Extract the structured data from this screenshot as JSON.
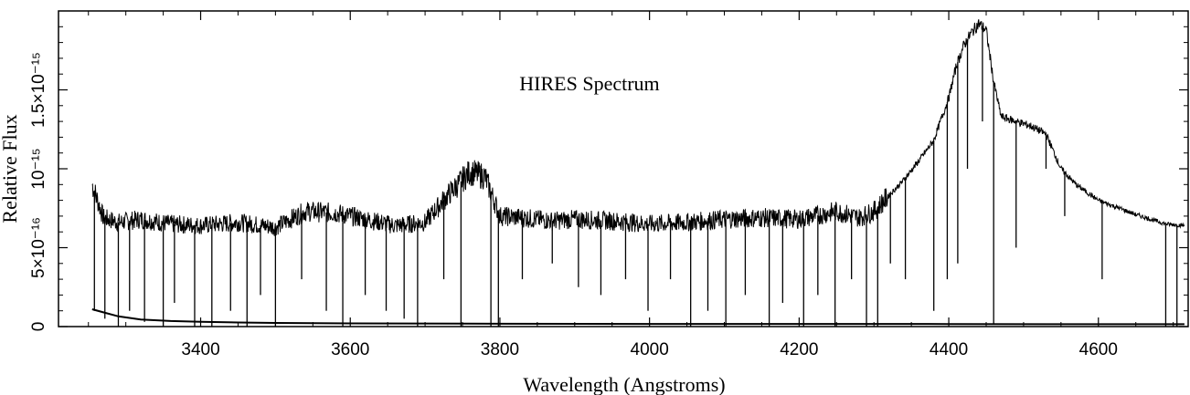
{
  "chart_data": {
    "type": "line",
    "title": "HIRES Spectrum",
    "xlabel": "Wavelength (Angstroms)",
    "ylabel": "Relative Flux",
    "xlim": [
      3210,
      4720
    ],
    "ylim": [
      0,
      2e-15
    ],
    "x_ticks": [
      {
        "value": 3400,
        "label": "3400"
      },
      {
        "value": 3600,
        "label": "3600"
      },
      {
        "value": 3800,
        "label": "3800"
      },
      {
        "value": 4000,
        "label": "4000"
      },
      {
        "value": 4200,
        "label": "4200"
      },
      {
        "value": 4400,
        "label": "4400"
      },
      {
        "value": 4600,
        "label": "4600"
      }
    ],
    "y_ticks": [
      {
        "value": 0,
        "label": "0"
      },
      {
        "value": 5e-16,
        "label": "5×10⁻¹⁶"
      },
      {
        "value": 1e-15,
        "label": "10⁻¹⁵"
      },
      {
        "value": 1.5e-15,
        "label": "1.5×10⁻¹⁵"
      }
    ],
    "grid": false,
    "series": [
      {
        "role": "flux",
        "color": "#000000",
        "x": [
          3255,
          3270,
          3290,
          3320,
          3360,
          3400,
          3450,
          3500,
          3540,
          3580,
          3620,
          3660,
          3700,
          3730,
          3760,
          3780,
          3800,
          3830,
          3870,
          3900,
          3950,
          4000,
          4050,
          4100,
          4150,
          4200,
          4250,
          4280,
          4300,
          4320,
          4340,
          4360,
          4380,
          4400,
          4410,
          4420,
          4430,
          4440,
          4450,
          4460,
          4470,
          4490,
          4510,
          4530,
          4550,
          4570,
          4600,
          4650,
          4690,
          4715
        ],
        "y": [
          9e-16,
          6.9e-16,
          6.6e-16,
          6.8e-16,
          6.5e-16,
          6.4e-16,
          6.6e-16,
          6.3e-16,
          7.3e-16,
          7.2e-16,
          6.8e-16,
          6.4e-16,
          6.6e-16,
          8.3e-16,
          9.8e-16,
          9.5e-16,
          7e-16,
          6.9e-16,
          6.7e-16,
          6.8e-16,
          6.7e-16,
          6.5e-16,
          6.6e-16,
          6.8e-16,
          6.9e-16,
          6.8e-16,
          7.3e-16,
          6.9e-16,
          7.3e-16,
          8.3e-16,
          9.3e-16,
          1.05e-15,
          1.18e-15,
          1.45e-15,
          1.65e-15,
          1.78e-15,
          1.86e-15,
          1.92e-15,
          1.88e-15,
          1.55e-15,
          1.33e-15,
          1.3e-15,
          1.27e-15,
          1.22e-15,
          1e-15,
          9e-16,
          8e-16,
          7.1e-16,
          6.5e-16,
          6.4e-16
        ]
      },
      {
        "role": "error",
        "color": "#000000",
        "x": [
          3255,
          3270,
          3290,
          3320,
          3360,
          3400,
          3450,
          3500,
          3600,
          3800,
          4000,
          4200,
          4400,
          4600,
          4715
        ],
        "y": [
          1.1e-16,
          9e-17,
          6.5e-17,
          4.5e-17,
          3.5e-17,
          3e-17,
          2.6e-17,
          2.3e-17,
          2e-17,
          1.8e-17,
          1.7e-17,
          1.7e-17,
          1.6e-17,
          1.5e-17,
          1.5e-17
        ]
      }
    ],
    "absorption_lines": [
      {
        "x": 3258,
        "y": 1e-16
      },
      {
        "x": 3272,
        "y": 5e-17
      },
      {
        "x": 3290,
        "y": 0
      },
      {
        "x": 3305,
        "y": 1e-16
      },
      {
        "x": 3325,
        "y": 3e-17
      },
      {
        "x": 3350,
        "y": 0
      },
      {
        "x": 3365,
        "y": 1.5e-16
      },
      {
        "x": 3392,
        "y": 0
      },
      {
        "x": 3415,
        "y": 0
      },
      {
        "x": 3440,
        "y": 1e-16
      },
      {
        "x": 3462,
        "y": 0
      },
      {
        "x": 3480,
        "y": 2e-16
      },
      {
        "x": 3500,
        "y": 0
      },
      {
        "x": 3535,
        "y": 3e-16
      },
      {
        "x": 3568,
        "y": 1e-16
      },
      {
        "x": 3590,
        "y": 0
      },
      {
        "x": 3620,
        "y": 2e-16
      },
      {
        "x": 3648,
        "y": 1e-16
      },
      {
        "x": 3672,
        "y": 5e-17
      },
      {
        "x": 3690,
        "y": 0
      },
      {
        "x": 3725,
        "y": 3e-16
      },
      {
        "x": 3748,
        "y": 0
      },
      {
        "x": 3788,
        "y": 0
      },
      {
        "x": 3798,
        "y": 0
      },
      {
        "x": 3830,
        "y": 3e-16
      },
      {
        "x": 3870,
        "y": 4e-16
      },
      {
        "x": 3905,
        "y": 2.5e-16
      },
      {
        "x": 3935,
        "y": 2e-16
      },
      {
        "x": 3968,
        "y": 3e-16
      },
      {
        "x": 3998,
        "y": 1e-16
      },
      {
        "x": 4028,
        "y": 3e-16
      },
      {
        "x": 4055,
        "y": 0
      },
      {
        "x": 4078,
        "y": 1e-16
      },
      {
        "x": 4102,
        "y": 0
      },
      {
        "x": 4128,
        "y": 2e-16
      },
      {
        "x": 4160,
        "y": 0
      },
      {
        "x": 4178,
        "y": 1.5e-16
      },
      {
        "x": 4206,
        "y": 0
      },
      {
        "x": 4225,
        "y": 2e-16
      },
      {
        "x": 4248,
        "y": 0
      },
      {
        "x": 4270,
        "y": 3e-16
      },
      {
        "x": 4290,
        "y": 0
      },
      {
        "x": 4305,
        "y": 0
      },
      {
        "x": 4322,
        "y": 4e-16
      },
      {
        "x": 4342,
        "y": 3e-16
      },
      {
        "x": 4380,
        "y": 1e-16
      },
      {
        "x": 4398,
        "y": 3e-16
      },
      {
        "x": 4412,
        "y": 4e-16
      },
      {
        "x": 4425,
        "y": 1e-15
      },
      {
        "x": 4445,
        "y": 1.3e-15
      },
      {
        "x": 4460,
        "y": 2e-17
      },
      {
        "x": 4490,
        "y": 5e-16
      },
      {
        "x": 4530,
        "y": 1e-15
      },
      {
        "x": 4555,
        "y": 7e-16
      },
      {
        "x": 4605,
        "y": 3e-16
      },
      {
        "x": 4690,
        "y": 0
      },
      {
        "x": 4705,
        "y": 0
      }
    ]
  }
}
